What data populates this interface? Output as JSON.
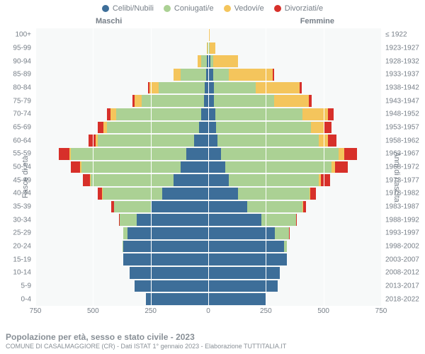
{
  "legend": [
    {
      "label": "Celibi/Nubili",
      "color": "#3d6e99"
    },
    {
      "label": "Coniugati/e",
      "color": "#abd194"
    },
    {
      "label": "Vedovi/e",
      "color": "#f4c55c"
    },
    {
      "label": "Divorziati/e",
      "color": "#d7302a"
    }
  ],
  "header": {
    "maschi": "Maschi",
    "femmine": "Femmine"
  },
  "axis": {
    "left_title": "Fasce di età",
    "right_title": "Anni di nascita",
    "x_max": 750,
    "x_ticks": [
      750,
      500,
      250,
      0,
      250,
      500,
      750
    ],
    "x_tick_labels": [
      "750",
      "500",
      "250",
      "0",
      "250",
      "500",
      "750"
    ]
  },
  "colors": {
    "plot_bg": "#f7f9f9",
    "grid": "#ffffff",
    "text": "#777f88"
  },
  "rows": [
    {
      "age": "100+",
      "birth": "≤ 1922",
      "m": {
        "c": 0,
        "j": 0,
        "v": 1,
        "d": 0
      },
      "f": {
        "c": 0,
        "j": 0,
        "v": 5,
        "d": 0
      }
    },
    {
      "age": "95-99",
      "birth": "1923-1927",
      "m": {
        "c": 1,
        "j": 2,
        "v": 3,
        "d": 0
      },
      "f": {
        "c": 4,
        "j": 1,
        "v": 25,
        "d": 0
      }
    },
    {
      "age": "90-94",
      "birth": "1928-1932",
      "m": {
        "c": 6,
        "j": 25,
        "v": 15,
        "d": 0
      },
      "f": {
        "c": 10,
        "j": 10,
        "v": 110,
        "d": 0
      }
    },
    {
      "age": "85-89",
      "birth": "1933-1937",
      "m": {
        "c": 10,
        "j": 110,
        "v": 30,
        "d": 0
      },
      "f": {
        "c": 20,
        "j": 70,
        "v": 190,
        "d": 5
      }
    },
    {
      "age": "80-84",
      "birth": "1938-1942",
      "m": {
        "c": 15,
        "j": 200,
        "v": 40,
        "d": 5
      },
      "f": {
        "c": 25,
        "j": 180,
        "v": 190,
        "d": 10
      }
    },
    {
      "age": "75-79",
      "birth": "1943-1947",
      "m": {
        "c": 20,
        "j": 270,
        "v": 30,
        "d": 10
      },
      "f": {
        "c": 25,
        "j": 260,
        "v": 150,
        "d": 15
      }
    },
    {
      "age": "70-74",
      "birth": "1948-1952",
      "m": {
        "c": 30,
        "j": 370,
        "v": 25,
        "d": 15
      },
      "f": {
        "c": 30,
        "j": 380,
        "v": 110,
        "d": 25
      }
    },
    {
      "age": "65-69",
      "birth": "1953-1957",
      "m": {
        "c": 40,
        "j": 400,
        "v": 15,
        "d": 25
      },
      "f": {
        "c": 35,
        "j": 410,
        "v": 60,
        "d": 30
      }
    },
    {
      "age": "60-64",
      "birth": "1958-1962",
      "m": {
        "c": 60,
        "j": 420,
        "v": 10,
        "d": 30
      },
      "f": {
        "c": 40,
        "j": 440,
        "v": 40,
        "d": 35
      }
    },
    {
      "age": "55-59",
      "birth": "1963-1967",
      "m": {
        "c": 95,
        "j": 500,
        "v": 8,
        "d": 45
      },
      "f": {
        "c": 55,
        "j": 510,
        "v": 25,
        "d": 55
      }
    },
    {
      "age": "50-54",
      "birth": "1968-1972",
      "m": {
        "c": 120,
        "j": 430,
        "v": 5,
        "d": 40
      },
      "f": {
        "c": 75,
        "j": 460,
        "v": 15,
        "d": 55
      }
    },
    {
      "age": "45-49",
      "birth": "1973-1977",
      "m": {
        "c": 150,
        "j": 360,
        "v": 3,
        "d": 30
      },
      "f": {
        "c": 90,
        "j": 390,
        "v": 8,
        "d": 40
      }
    },
    {
      "age": "40-44",
      "birth": "1978-1982",
      "m": {
        "c": 200,
        "j": 260,
        "v": 1,
        "d": 20
      },
      "f": {
        "c": 130,
        "j": 310,
        "v": 3,
        "d": 25
      }
    },
    {
      "age": "35-39",
      "birth": "1983-1987",
      "m": {
        "c": 250,
        "j": 160,
        "v": 0,
        "d": 10
      },
      "f": {
        "c": 170,
        "j": 240,
        "v": 1,
        "d": 12
      }
    },
    {
      "age": "30-34",
      "birth": "1988-1992",
      "m": {
        "c": 310,
        "j": 75,
        "v": 0,
        "d": 3
      },
      "f": {
        "c": 230,
        "j": 150,
        "v": 0,
        "d": 5
      }
    },
    {
      "age": "25-29",
      "birth": "1993-1997",
      "m": {
        "c": 350,
        "j": 20,
        "v": 0,
        "d": 0
      },
      "f": {
        "c": 290,
        "j": 60,
        "v": 0,
        "d": 1
      }
    },
    {
      "age": "20-24",
      "birth": "1998-2002",
      "m": {
        "c": 370,
        "j": 2,
        "v": 0,
        "d": 0
      },
      "f": {
        "c": 330,
        "j": 10,
        "v": 0,
        "d": 0
      }
    },
    {
      "age": "15-19",
      "birth": "2003-2007",
      "m": {
        "c": 370,
        "j": 0,
        "v": 0,
        "d": 0
      },
      "f": {
        "c": 340,
        "j": 0,
        "v": 0,
        "d": 0
      }
    },
    {
      "age": "10-14",
      "birth": "2008-2012",
      "m": {
        "c": 340,
        "j": 0,
        "v": 0,
        "d": 0
      },
      "f": {
        "c": 310,
        "j": 0,
        "v": 0,
        "d": 0
      }
    },
    {
      "age": "5-9",
      "birth": "2013-2017",
      "m": {
        "c": 320,
        "j": 0,
        "v": 0,
        "d": 0
      },
      "f": {
        "c": 300,
        "j": 0,
        "v": 0,
        "d": 0
      }
    },
    {
      "age": "0-4",
      "birth": "2018-2022",
      "m": {
        "c": 270,
        "j": 0,
        "v": 0,
        "d": 0
      },
      "f": {
        "c": 250,
        "j": 0,
        "v": 0,
        "d": 0
      }
    }
  ],
  "footer": {
    "title": "Popolazione per età, sesso e stato civile - 2023",
    "sub": "COMUNE DI CASALMAGGIORE (CR) - Dati ISTAT 1° gennaio 2023 - Elaborazione TUTTITALIA.IT"
  }
}
